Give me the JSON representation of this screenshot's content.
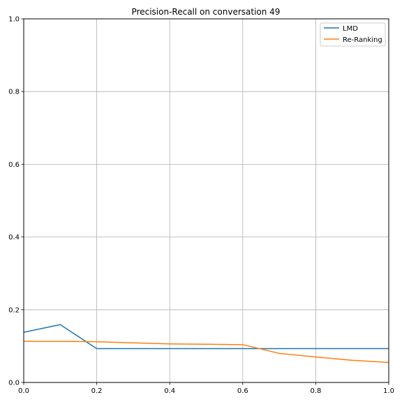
{
  "chart_data": {
    "type": "line",
    "title": "Precision-Recall on conversation 49",
    "xlabel": "",
    "ylabel": "",
    "xlim": [
      0.0,
      1.0
    ],
    "ylim": [
      0.0,
      1.0
    ],
    "grid": true,
    "legend_position": "top-right",
    "x_ticks": [
      "0.0",
      "0.2",
      "0.4",
      "0.6",
      "0.8",
      "1.0"
    ],
    "y_ticks": [
      "0.0",
      "0.2",
      "0.4",
      "0.6",
      "0.8",
      "1.0"
    ],
    "series": [
      {
        "name": "LMD",
        "color": "#1f77b4",
        "x": [
          0.0,
          0.1,
          0.2,
          0.3,
          0.4,
          0.5,
          0.6,
          0.7,
          0.8,
          0.9,
          1.0
        ],
        "y": [
          0.138,
          0.159,
          0.093,
          0.093,
          0.093,
          0.093,
          0.093,
          0.093,
          0.093,
          0.093,
          0.093
        ]
      },
      {
        "name": "Re-Ranking",
        "color": "#ff7f0e",
        "x": [
          0.0,
          0.1,
          0.2,
          0.3,
          0.4,
          0.5,
          0.6,
          0.7,
          0.8,
          0.9,
          1.0
        ],
        "y": [
          0.113,
          0.113,
          0.112,
          0.109,
          0.106,
          0.105,
          0.104,
          0.08,
          0.07,
          0.061,
          0.055
        ]
      }
    ]
  }
}
